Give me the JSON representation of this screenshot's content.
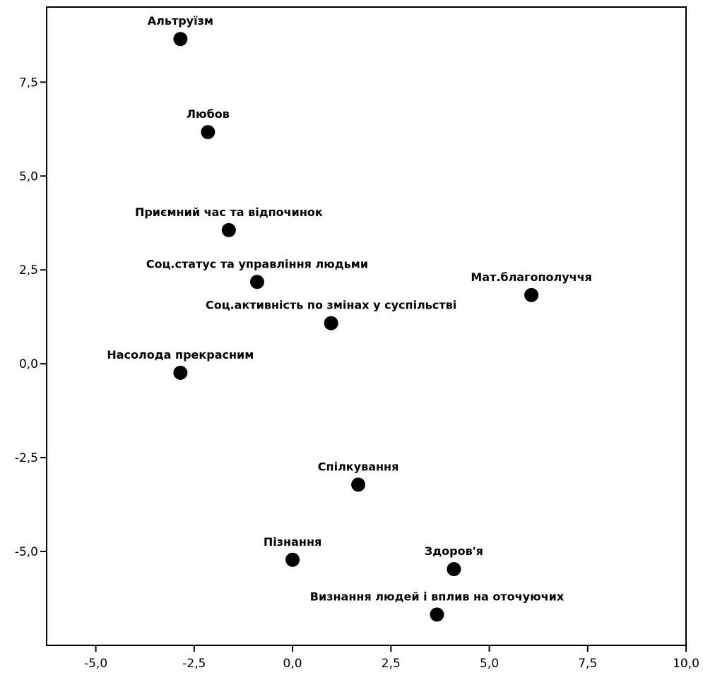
{
  "chart_data": {
    "type": "scatter",
    "title": "",
    "xlabel": "",
    "ylabel": "",
    "xlim": [
      -6.25,
      10.0
    ],
    "ylim": [
      -7.5,
      9.5
    ],
    "xticks": [
      -5.0,
      -2.5,
      0.0,
      2.5,
      5.0,
      7.5,
      10.0
    ],
    "xtick_labels": [
      "-5,0",
      "-2,5",
      "0,0",
      "2,5",
      "5,0",
      "7,5",
      "10,0"
    ],
    "yticks": [
      -5.0,
      -2.5,
      0.0,
      2.5,
      5.0,
      7.5
    ],
    "ytick_labels": [
      "-5,0",
      "-2,5",
      "0,0",
      "2,5",
      "5,0",
      "7,5"
    ],
    "grid": false,
    "legend": "none",
    "marker_color": "#000000",
    "points": [
      {
        "label": "Альтруїзм",
        "x": -2.85,
        "y": 8.65
      },
      {
        "label": "Любов",
        "x": -2.15,
        "y": 6.17
      },
      {
        "label": "Приємний час та відпочинок",
        "x": -1.62,
        "y": 3.56
      },
      {
        "label": "Соц.статус та управління людьми",
        "x": -0.9,
        "y": 2.18
      },
      {
        "label": "Мат.благополуччя",
        "x": 6.07,
        "y": 1.83
      },
      {
        "label": "Соц.активність по змінах у суспільстві",
        "x": 0.98,
        "y": 1.08
      },
      {
        "label": "Насолода прекрасним",
        "x": -2.85,
        "y": -0.24
      },
      {
        "label": "Спілкування",
        "x": 1.67,
        "y": -3.22
      },
      {
        "label": "Пізнання",
        "x": 0.0,
        "y": -5.22
      },
      {
        "label": "Здоров'я",
        "x": 4.1,
        "y": -5.47
      },
      {
        "label": "Визнання людей і вплив на оточуючих",
        "x": 3.67,
        "y": -6.68
      }
    ]
  }
}
